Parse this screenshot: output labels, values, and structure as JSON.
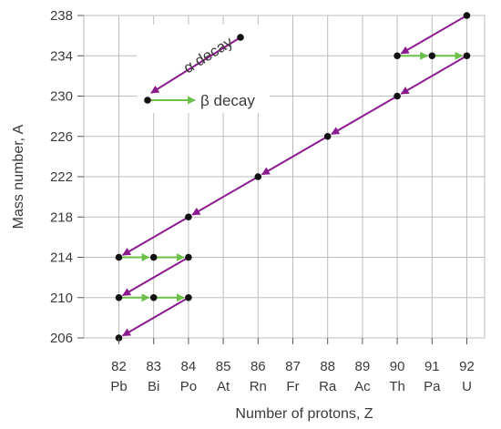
{
  "chart_data": {
    "type": "scatter",
    "xlabel": "Number of protons, Z",
    "ylabel": "Mass number, A",
    "xlim": [
      81,
      93
    ],
    "ylim": [
      206,
      238
    ],
    "grid": true,
    "x_ticks": [
      {
        "z": 82,
        "symbol": "Pb"
      },
      {
        "z": 83,
        "symbol": "Bi"
      },
      {
        "z": 84,
        "symbol": "Po"
      },
      {
        "z": 85,
        "symbol": "At"
      },
      {
        "z": 86,
        "symbol": "Rn"
      },
      {
        "z": 87,
        "symbol": "Fr"
      },
      {
        "z": 88,
        "symbol": "Ra"
      },
      {
        "z": 89,
        "symbol": "Ac"
      },
      {
        "z": 90,
        "symbol": "Th"
      },
      {
        "z": 91,
        "symbol": "Pa"
      },
      {
        "z": 92,
        "symbol": "U"
      }
    ],
    "y_ticks": [
      206,
      210,
      214,
      218,
      222,
      226,
      230,
      234,
      238
    ],
    "nuclides": [
      {
        "z": 92,
        "a": 238
      },
      {
        "z": 90,
        "a": 234
      },
      {
        "z": 91,
        "a": 234
      },
      {
        "z": 92,
        "a": 234
      },
      {
        "z": 90,
        "a": 230
      },
      {
        "z": 88,
        "a": 226
      },
      {
        "z": 86,
        "a": 222
      },
      {
        "z": 84,
        "a": 218
      },
      {
        "z": 82,
        "a": 214
      },
      {
        "z": 83,
        "a": 214
      },
      {
        "z": 84,
        "a": 214
      },
      {
        "z": 82,
        "a": 210
      },
      {
        "z": 83,
        "a": 210
      },
      {
        "z": 84,
        "a": 210
      },
      {
        "z": 82,
        "a": 206
      }
    ],
    "alpha_decays": [
      {
        "from": [
          92,
          238
        ],
        "to": [
          90,
          234
        ]
      },
      {
        "from": [
          92,
          234
        ],
        "to": [
          90,
          230
        ]
      },
      {
        "from": [
          90,
          230
        ],
        "to": [
          88,
          226
        ]
      },
      {
        "from": [
          88,
          226
        ],
        "to": [
          86,
          222
        ]
      },
      {
        "from": [
          86,
          222
        ],
        "to": [
          84,
          218
        ]
      },
      {
        "from": [
          84,
          218
        ],
        "to": [
          82,
          214
        ]
      },
      {
        "from": [
          84,
          214
        ],
        "to": [
          82,
          210
        ]
      },
      {
        "from": [
          84,
          210
        ],
        "to": [
          82,
          206
        ]
      }
    ],
    "beta_decays": [
      {
        "from": [
          90,
          234
        ],
        "to": [
          91,
          234
        ]
      },
      {
        "from": [
          91,
          234
        ],
        "to": [
          92,
          234
        ]
      },
      {
        "from": [
          82,
          214
        ],
        "to": [
          83,
          214
        ]
      },
      {
        "from": [
          83,
          214
        ],
        "to": [
          84,
          214
        ]
      },
      {
        "from": [
          82,
          210
        ],
        "to": [
          83,
          210
        ]
      },
      {
        "from": [
          83,
          210
        ],
        "to": [
          84,
          210
        ]
      }
    ],
    "legend": {
      "placement": "top-left",
      "alpha_label": "α decay",
      "beta_label": "β decay"
    },
    "colors": {
      "alpha": "#8b1a8f",
      "beta": "#6cc04a",
      "point": "#111111",
      "grid": "#bdbdbd",
      "text": "#3a3a3a"
    }
  }
}
